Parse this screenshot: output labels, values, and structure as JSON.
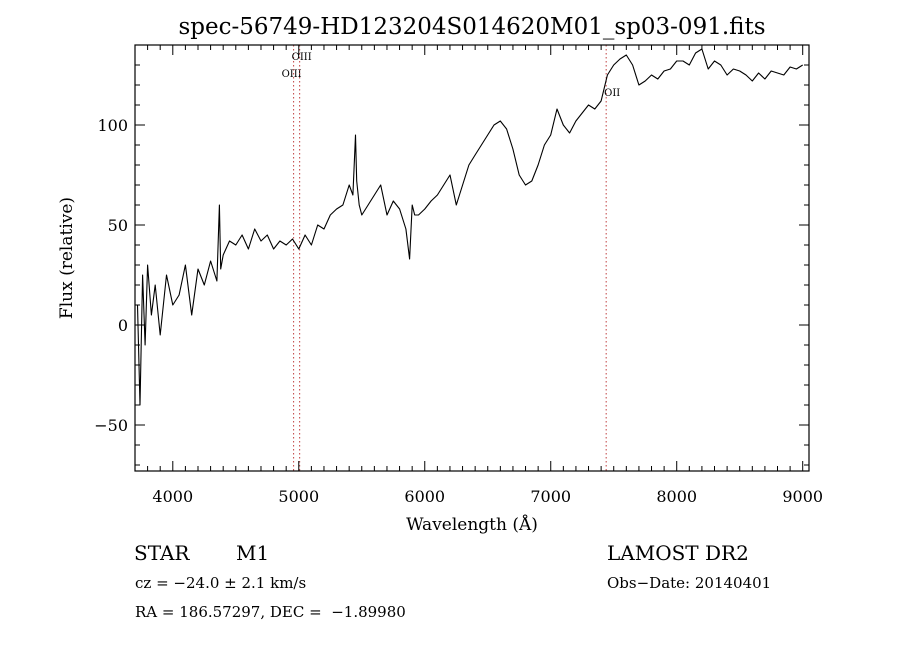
{
  "chart_data": {
    "type": "line",
    "title": "spec-56749-HD123204S014620M01_sp03-091.fits",
    "xlabel": "Wavelength (Å)",
    "ylabel": "Flux (relative)",
    "xlim": [
      3700,
      9050
    ],
    "ylim": [
      -73,
      140
    ],
    "x_ticks": [
      4000,
      5000,
      6000,
      7000,
      8000,
      9000
    ],
    "x_tick_labels": [
      "4000",
      "5000",
      "6000",
      "7000",
      "8000",
      "9000"
    ],
    "y_ticks": [
      -50,
      0,
      50,
      100
    ],
    "y_tick_labels": [
      "−50",
      "0",
      "50",
      "100"
    ],
    "grid": false,
    "line_color": "#000000",
    "marker_color": "#c04040",
    "line_markers": [
      {
        "label": "OIII",
        "x": 4959
      },
      {
        "label": "OIII",
        "x": 5007
      },
      {
        "label": "OII",
        "x": 7440
      }
    ],
    "series": [
      {
        "x": [
          3720,
          3740,
          3760,
          3780,
          3800,
          3830,
          3860,
          3900,
          3950,
          4000,
          4050,
          4100,
          4150,
          4200,
          4250,
          4300,
          4350,
          4370,
          4380,
          4400,
          4450,
          4500,
          4550,
          4600,
          4650,
          4700,
          4750,
          4800,
          4850,
          4900,
          4950,
          5000,
          5050,
          5100,
          5150,
          5200,
          5250,
          5300,
          5350,
          5400,
          5430,
          5450,
          5460,
          5480,
          5500,
          5550,
          5600,
          5650,
          5700,
          5750,
          5800,
          5850,
          5880,
          5900,
          5920,
          5950,
          6000,
          6050,
          6100,
          6150,
          6200,
          6250,
          6300,
          6350,
          6400,
          6450,
          6500,
          6550,
          6600,
          6650,
          6700,
          6750,
          6800,
          6850,
          6900,
          6950,
          7000,
          7050,
          7100,
          7150,
          7200,
          7250,
          7300,
          7350,
          7400,
          7450,
          7500,
          7550,
          7600,
          7650,
          7700,
          7750,
          7800,
          7850,
          7900,
          7950,
          8000,
          8050,
          8100,
          8150,
          8200,
          8250,
          8300,
          8350,
          8400,
          8450,
          8500,
          8550,
          8600,
          8650,
          8700,
          8750,
          8800,
          8850,
          8900,
          8950,
          9000
        ],
        "y": [
          10,
          -40,
          25,
          -10,
          30,
          5,
          20,
          -5,
          25,
          10,
          15,
          30,
          5,
          28,
          20,
          32,
          22,
          60,
          28,
          35,
          42,
          40,
          45,
          38,
          48,
          42,
          45,
          38,
          42,
          40,
          43,
          38,
          45,
          40,
          50,
          48,
          55,
          58,
          60,
          70,
          65,
          95,
          72,
          60,
          55,
          60,
          65,
          70,
          55,
          62,
          58,
          48,
          33,
          60,
          55,
          55,
          58,
          62,
          65,
          70,
          75,
          60,
          70,
          80,
          85,
          90,
          95,
          100,
          102,
          98,
          88,
          75,
          70,
          72,
          80,
          90,
          95,
          108,
          100,
          96,
          102,
          106,
          110,
          108,
          112,
          125,
          130,
          133,
          135,
          130,
          120,
          122,
          125,
          123,
          127,
          128,
          132,
          132,
          130,
          136,
          138,
          128,
          132,
          130,
          125,
          128,
          127,
          125,
          122,
          126,
          123,
          127,
          126,
          125,
          129,
          128,
          130
        ]
      }
    ]
  },
  "info": {
    "object_type": "STAR",
    "subclass": "M1",
    "survey": "LAMOST DR2",
    "cz": "cz = −24.0 ± 2.1 km/s",
    "obs_date": "Obs−Date: 20140401",
    "coords": "RA = 186.57297, DEC =  −1.89980"
  }
}
